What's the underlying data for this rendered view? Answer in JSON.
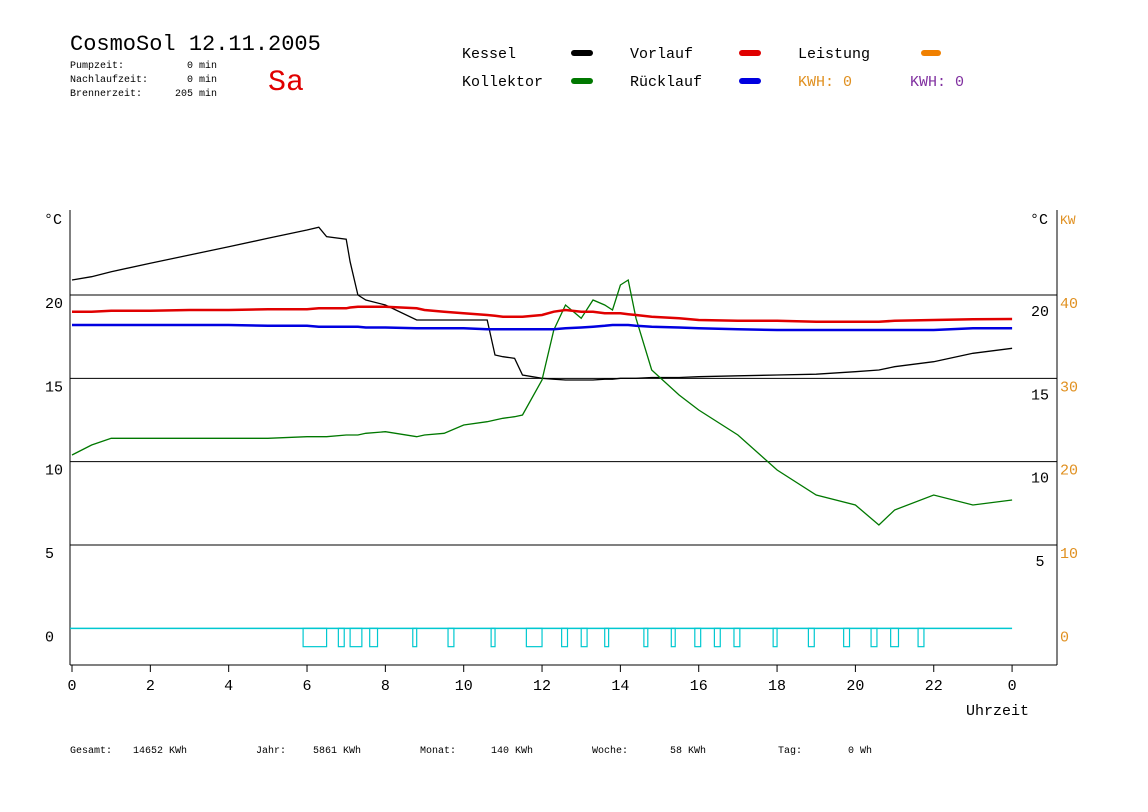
{
  "header": {
    "title": "CosmoSol 12.11.2005",
    "day": "Sa",
    "stats": [
      [
        "Pumpzeit:",
        "0 min"
      ],
      [
        "Nachlaufzeit:",
        "0 min"
      ],
      [
        "Brennerzeit:",
        "205 min"
      ]
    ]
  },
  "legend_extra": [
    {
      "name": "Leistung",
      "color": "#f08000"
    }
  ],
  "kwh_labels": [
    {
      "text": "KWH: 0",
      "color": "#e09020"
    },
    {
      "text": "KWH: 0",
      "color": "#8030a0"
    }
  ],
  "footer": [
    [
      "Gesamt:",
      "14652 KWh"
    ],
    [
      "Jahr:",
      "5861 KWh"
    ],
    [
      "Monat:",
      "140 KWh"
    ],
    [
      "Woche:",
      "58 KWh"
    ],
    [
      "Tag:",
      "0 Wh"
    ]
  ],
  "chart_data": {
    "type": "line",
    "ylabel": "°C",
    "ylabel_right": "°C",
    "y2label": "KW",
    "xlabel": "Uhrzeit",
    "xlim": [
      0,
      25.15
    ],
    "xticks": [
      0,
      2,
      4,
      6,
      8,
      10,
      12,
      14,
      16,
      18,
      20,
      22,
      {
        "value": 24,
        "label": "0"
      }
    ],
    "ylim": [
      -2.2,
      25.1
    ],
    "yticks": [
      0,
      5,
      10,
      15,
      20
    ],
    "y3ticks": [
      20,
      15,
      10,
      5
    ],
    "y2lim": [
      -4.4,
      50.2
    ],
    "y2ticks": [
      0,
      10,
      20,
      30,
      40
    ],
    "y2color": "#e09020",
    "grid": true,
    "x": [
      0,
      0.5,
      1,
      2,
      3,
      4,
      5,
      6,
      6.3,
      6.5,
      7,
      7.1,
      7.3,
      7.5,
      8,
      8.8,
      9,
      9.5,
      10,
      10.6,
      10.8,
      11,
      11.3,
      11.5,
      12,
      12.3,
      12.6,
      13,
      13.3,
      13.6,
      13.8,
      14,
      14.2,
      14.4,
      14.8,
      15.5,
      16,
      17,
      18,
      19,
      20,
      20.6,
      21,
      22,
      23,
      24
    ],
    "series": [
      {
        "name": "Kessel",
        "color": "#000000",
        "values": [
          20.9,
          21.1,
          21.4,
          21.9,
          22.4,
          22.9,
          23.4,
          23.9,
          24.07,
          23.5,
          23.35,
          22.0,
          20.0,
          19.7,
          19.4,
          18.5,
          18.5,
          18.5,
          18.5,
          18.5,
          16.4,
          16.3,
          16.2,
          15.2,
          15.0,
          14.95,
          14.9,
          14.9,
          14.9,
          14.95,
          14.95,
          15.0,
          15.0,
          15.0,
          15.05,
          15.05,
          15.1,
          15.15,
          15.2,
          15.25,
          15.4,
          15.5,
          15.7,
          16.0,
          16.5,
          16.8
        ]
      },
      {
        "name": "Kollektor",
        "color": "#007800",
        "values": [
          10.4,
          11.0,
          11.4,
          11.4,
          11.4,
          11.4,
          11.4,
          11.5,
          11.5,
          11.5,
          11.6,
          11.6,
          11.6,
          11.7,
          11.8,
          11.5,
          11.6,
          11.7,
          12.2,
          12.4,
          12.5,
          12.6,
          12.7,
          12.8,
          14.9,
          17.9,
          19.4,
          18.6,
          19.7,
          19.4,
          19.1,
          20.6,
          20.9,
          18.6,
          15.5,
          14.0,
          13.1,
          11.6,
          9.5,
          8.0,
          7.4,
          6.2,
          7.1,
          8.0,
          7.4,
          7.7
        ]
      },
      {
        "name": "Vorlauf",
        "color": "#e00000",
        "values": [
          19.0,
          19.0,
          19.05,
          19.05,
          19.1,
          19.1,
          19.15,
          19.15,
          19.2,
          19.2,
          19.2,
          19.25,
          19.3,
          19.3,
          19.3,
          19.2,
          19.1,
          19.0,
          18.9,
          18.8,
          18.75,
          18.7,
          18.7,
          18.7,
          18.8,
          19.0,
          19.1,
          19.0,
          19.0,
          18.9,
          18.9,
          18.9,
          18.85,
          18.8,
          18.7,
          18.6,
          18.5,
          18.45,
          18.45,
          18.4,
          18.4,
          18.4,
          18.45,
          18.5,
          18.55,
          18.56
        ]
      },
      {
        "name": "Rücklauf",
        "color": "#0000e0",
        "values": [
          18.2,
          18.2,
          18.2,
          18.2,
          18.2,
          18.2,
          18.15,
          18.15,
          18.1,
          18.1,
          18.1,
          18.1,
          18.1,
          18.05,
          18.05,
          18.0,
          18.0,
          18.0,
          18.0,
          17.95,
          17.95,
          17.95,
          17.95,
          17.95,
          17.95,
          17.95,
          18.0,
          18.05,
          18.1,
          18.15,
          18.2,
          18.2,
          18.2,
          18.15,
          18.1,
          18.05,
          18.0,
          17.95,
          17.9,
          17.9,
          17.9,
          17.9,
          17.9,
          17.9,
          18.0,
          18.0
        ]
      }
    ],
    "pump": {
      "color": "#00c8d0",
      "low": -1.1,
      "high": 0,
      "pulses": [
        [
          5.9,
          6.5
        ],
        [
          6.8,
          6.95
        ],
        [
          7.1,
          7.4
        ],
        [
          7.6,
          7.8
        ],
        [
          8.7,
          8.8
        ],
        [
          9.6,
          9.75
        ],
        [
          10.7,
          10.8
        ],
        [
          11.6,
          12.0
        ],
        [
          12.5,
          12.65
        ],
        [
          13.0,
          13.15
        ],
        [
          13.6,
          13.7
        ],
        [
          14.6,
          14.7
        ],
        [
          15.3,
          15.4
        ],
        [
          15.9,
          16.05
        ],
        [
          16.4,
          16.55
        ],
        [
          16.9,
          17.05
        ],
        [
          17.9,
          18.0
        ],
        [
          18.8,
          18.95
        ],
        [
          19.7,
          19.85
        ],
        [
          20.4,
          20.55
        ],
        [
          20.9,
          21.1
        ],
        [
          21.6,
          21.75
        ]
      ]
    }
  }
}
